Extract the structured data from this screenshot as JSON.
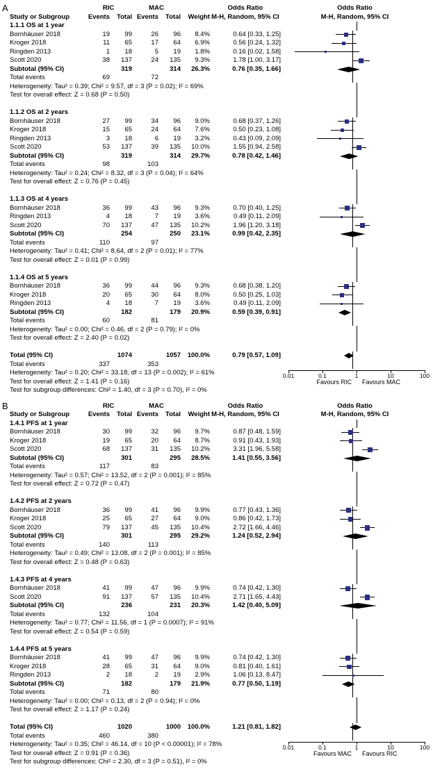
{
  "colors": {
    "marker": "#2c2f84",
    "ci_line": "#000000",
    "diamond": "#000000",
    "axis": "#000000"
  },
  "chart_data": [
    {
      "type": "forest",
      "panel_label": "A",
      "outcome": "OS",
      "scale": {
        "min": 0.01,
        "max": 100,
        "log": true
      },
      "header": {
        "group1": "RIC",
        "group2": "MAC",
        "study": "Study or Subgroup",
        "events": "Events",
        "total": "Total",
        "weight": "Weight",
        "or_col_title": "Odds Ratio",
        "or_plot_title": "Odds Ratio",
        "method": "M-H, Random, 95% CI"
      },
      "subgroups": [
        {
          "title": "1.1.1 OS at 1 year",
          "studies": [
            {
              "name": "Bornhäuser 2018",
              "e1": 19,
              "t1": 99,
              "e2": 26,
              "t2": 96,
              "weight": "8.4%",
              "w": 8.4,
              "or": 0.64,
              "lo": 0.33,
              "hi": 1.25,
              "ci": "0.64 [0.33, 1.25]"
            },
            {
              "name": "Kroger 2018",
              "e1": 11,
              "t1": 65,
              "e2": 17,
              "t2": 64,
              "weight": "6.9%",
              "w": 6.9,
              "or": 0.56,
              "lo": 0.24,
              "hi": 1.32,
              "ci": "0.56 [0.24, 1.32]"
            },
            {
              "name": "Ringden 2013",
              "e1": 1,
              "t1": 18,
              "e2": 5,
              "t2": 19,
              "weight": "1.8%",
              "w": 1.8,
              "or": 0.16,
              "lo": 0.02,
              "hi": 1.58,
              "ci": "0.16 [0.02, 1.58]"
            },
            {
              "name": "Scott 2020",
              "e1": 38,
              "t1": 137,
              "e2": 24,
              "t2": 135,
              "weight": "9.3%",
              "w": 9.3,
              "or": 1.78,
              "lo": 1.0,
              "hi": 3.17,
              "ci": "1.78 [1.00, 3.17]"
            }
          ],
          "subtotal": {
            "label": "Subtotal (95% CI)",
            "t1": 319,
            "t2": 314,
            "weight": "26.3%",
            "or": 0.76,
            "lo": 0.35,
            "hi": 1.66,
            "ci": "0.76 [0.35, 1.66]"
          },
          "total_events": {
            "label": "Total events",
            "e1": 69,
            "e2": 72
          },
          "heterogeneity": "Heterogeneity: Tau² = 0.39; Chi² = 9.57, df = 3 (P = 0.02); I² = 69%",
          "test": "Test for overall effect: Z = 0.68 (P = 0.50)"
        },
        {
          "title": "1.1.2 OS at 2 years",
          "studies": [
            {
              "name": "Bornhäuser 2018",
              "e1": 27,
              "t1": 99,
              "e2": 34,
              "t2": 96,
              "weight": "9.0%",
              "w": 9.0,
              "or": 0.68,
              "lo": 0.37,
              "hi": 1.26,
              "ci": "0.68 [0.37, 1.26]"
            },
            {
              "name": "Kroger 2018",
              "e1": 15,
              "t1": 65,
              "e2": 24,
              "t2": 64,
              "weight": "7.6%",
              "w": 7.6,
              "or": 0.5,
              "lo": 0.23,
              "hi": 1.08,
              "ci": "0.50 [0.23, 1.08]"
            },
            {
              "name": "Ringden 2013",
              "e1": 3,
              "t1": 18,
              "e2": 6,
              "t2": 19,
              "weight": "3.2%",
              "w": 3.2,
              "or": 0.43,
              "lo": 0.09,
              "hi": 2.09,
              "ci": "0.43 [0.09, 2.09]"
            },
            {
              "name": "Scott 2020",
              "e1": 53,
              "t1": 137,
              "e2": 39,
              "t2": 135,
              "weight": "10.0%",
              "w": 10.0,
              "or": 1.55,
              "lo": 0.94,
              "hi": 2.58,
              "ci": "1.55 [0.94, 2.58]"
            }
          ],
          "subtotal": {
            "label": "Subtotal (95% CI)",
            "t1": 319,
            "t2": 314,
            "weight": "29.7%",
            "or": 0.78,
            "lo": 0.42,
            "hi": 1.46,
            "ci": "0.78 [0.42, 1.46]"
          },
          "total_events": {
            "label": "Total events",
            "e1": 98,
            "e2": 103
          },
          "heterogeneity": "Heterogeneity: Tau² = 0.24; Chi² = 8.32, df = 3 (P = 0.04); I² = 64%",
          "test": "Test for overall effect: Z = 0.76 (P = 0.45)"
        },
        {
          "title": "1.1.3 OS at 4 years",
          "studies": [
            {
              "name": "Bornhäuser 2018",
              "e1": 36,
              "t1": 99,
              "e2": 43,
              "t2": 96,
              "weight": "9.3%",
              "w": 9.3,
              "or": 0.7,
              "lo": 0.4,
              "hi": 1.25,
              "ci": "0.70 [0.40, 1.25]"
            },
            {
              "name": "Ringden 2013",
              "e1": 4,
              "t1": 18,
              "e2": 7,
              "t2": 19,
              "weight": "3.6%",
              "w": 3.6,
              "or": 0.49,
              "lo": 0.11,
              "hi": 2.09,
              "ci": "0.49 [0.11, 2.09]"
            },
            {
              "name": "Scott 2020",
              "e1": 70,
              "t1": 137,
              "e2": 47,
              "t2": 135,
              "weight": "10.2%",
              "w": 10.2,
              "or": 1.96,
              "lo": 1.2,
              "hi": 3.18,
              "ci": "1.96 [1.20, 3.18]"
            }
          ],
          "subtotal": {
            "label": "Subtotal (95% CI)",
            "t1": 254,
            "t2": 250,
            "weight": "23.1%",
            "or": 0.99,
            "lo": 0.42,
            "hi": 2.35,
            "ci": "0.99 [0.42, 2.35]"
          },
          "total_events": {
            "label": "Total events",
            "e1": 110,
            "e2": 97
          },
          "heterogeneity": "Heterogeneity: Tau² = 0.41; Chi² = 8.64, df = 2 (P = 0.01); I² = 77%",
          "test": "Test for overall effect: Z = 0.01 (P = 0.99)"
        },
        {
          "title": "1.1.4 OS at 5 years",
          "studies": [
            {
              "name": "Bornhäuser 2018",
              "e1": 36,
              "t1": 99,
              "e2": 44,
              "t2": 96,
              "weight": "9.3%",
              "w": 9.3,
              "or": 0.68,
              "lo": 0.38,
              "hi": 1.2,
              "ci": "0.68 [0.38, 1.20]"
            },
            {
              "name": "Kroger 2018",
              "e1": 20,
              "t1": 65,
              "e2": 30,
              "t2": 64,
              "weight": "8.0%",
              "w": 8.0,
              "or": 0.5,
              "lo": 0.25,
              "hi": 1.03,
              "ci": "0.50 [0.25, 1.03]"
            },
            {
              "name": "Ringden 2013",
              "e1": 4,
              "t1": 18,
              "e2": 7,
              "t2": 19,
              "weight": "3.6%",
              "w": 3.6,
              "or": 0.49,
              "lo": 0.11,
              "hi": 2.09,
              "ci": "0.49 [0.11, 2.09]"
            }
          ],
          "subtotal": {
            "label": "Subtotal (95% CI)",
            "t1": 182,
            "t2": 179,
            "weight": "20.9%",
            "or": 0.59,
            "lo": 0.39,
            "hi": 0.91,
            "ci": "0.59 [0.39, 0.91]"
          },
          "total_events": {
            "label": "Total events",
            "e1": 60,
            "e2": 81
          },
          "heterogeneity": "Heterogeneity: Tau² = 0.00; Chi² = 0.46, df = 2 (P = 0.79); I² = 0%",
          "test": "Test for overall effect: Z = 2.40 (P = 0.02)"
        }
      ],
      "total": {
        "label": "Total (95% CI)",
        "t1": 1074,
        "t2": 1057,
        "weight": "100.0%",
        "or": 0.79,
        "lo": 0.57,
        "hi": 1.09,
        "ci": "0.79 [0.57, 1.09]",
        "total_events": {
          "label": "Total events",
          "e1": 337,
          "e2": 353
        },
        "heterogeneity": "Heterogeneity: Tau² = 0.20; Chi² = 33.18, df = 13 (P = 0.002); I² = 61%",
        "test": "Test for overall effect: Z = 1.41 (P = 0.16)",
        "subgroup_diff": "Test for subgroup differences: Chi² = 1.40, df = 3 (P = 0.70), I² = 0%"
      },
      "axis": {
        "ticks": [
          "0.01",
          "0.1",
          "1",
          "10",
          "100"
        ],
        "favours_left": "Favours RIC",
        "favours_right": "Favours MAC"
      }
    },
    {
      "type": "forest",
      "panel_label": "B",
      "outcome": "PFS",
      "scale": {
        "min": 0.01,
        "max": 100,
        "log": true
      },
      "header": {
        "group1": "RIC",
        "group2": "MAC",
        "study": "Study or Subgroup",
        "events": "Events",
        "total": "Total",
        "weight": "Weight",
        "or_col_title": "Odds Ratio",
        "or_plot_title": "Odds Ratio",
        "method": "M-H, Random, 95% CI"
      },
      "subgroups": [
        {
          "title": "1.4.1 PFS at 1 year",
          "studies": [
            {
              "name": "Bornhäuser 2018",
              "e1": 30,
              "t1": 99,
              "e2": 32,
              "t2": 96,
              "weight": "9.7%",
              "w": 9.7,
              "or": 0.87,
              "lo": 0.48,
              "hi": 1.59,
              "ci": "0.87 [0.48, 1.59]"
            },
            {
              "name": "Kroger 2018",
              "e1": 19,
              "t1": 65,
              "e2": 20,
              "t2": 64,
              "weight": "8.7%",
              "w": 8.7,
              "or": 0.91,
              "lo": 0.43,
              "hi": 1.93,
              "ci": "0.91 [0.43, 1.93]"
            },
            {
              "name": "Scott 2020",
              "e1": 68,
              "t1": 137,
              "e2": 31,
              "t2": 135,
              "weight": "10.2%",
              "w": 10.2,
              "or": 3.31,
              "lo": 1.96,
              "hi": 5.58,
              "ci": "3.31 [1.96, 5.58]"
            }
          ],
          "subtotal": {
            "label": "Subtotal (95% CI)",
            "t1": 301,
            "t2": 295,
            "weight": "28.5%",
            "or": 1.41,
            "lo": 0.55,
            "hi": 3.56,
            "ci": "1.41 [0.55, 3.56]"
          },
          "total_events": {
            "label": "Total events",
            "e1": 117,
            "e2": 83
          },
          "heterogeneity": "Heterogeneity: Tau² = 0.57; Chi² = 13.52, df = 2 (P = 0.001); I² = 85%",
          "test": "Test for overall effect: Z = 0.72 (P = 0.47)"
        },
        {
          "title": "1.4.2 PFS at 2 years",
          "studies": [
            {
              "name": "Bornhäuser 2018",
              "e1": 36,
              "t1": 99,
              "e2": 41,
              "t2": 96,
              "weight": "9.9%",
              "w": 9.9,
              "or": 0.77,
              "lo": 0.43,
              "hi": 1.36,
              "ci": "0.77 [0.43, 1.36]"
            },
            {
              "name": "Kroger 2018",
              "e1": 25,
              "t1": 65,
              "e2": 27,
              "t2": 64,
              "weight": "9.0%",
              "w": 9.0,
              "or": 0.86,
              "lo": 0.42,
              "hi": 1.73,
              "ci": "0.86 [0.42, 1.73]"
            },
            {
              "name": "Scott 2020",
              "e1": 79,
              "t1": 137,
              "e2": 45,
              "t2": 135,
              "weight": "10.4%",
              "w": 10.4,
              "or": 2.72,
              "lo": 1.66,
              "hi": 4.46,
              "ci": "2.72 [1.66, 4.46]"
            }
          ],
          "subtotal": {
            "label": "Subtotal (95% CI)",
            "t1": 301,
            "t2": 295,
            "weight": "29.2%",
            "or": 1.24,
            "lo": 0.52,
            "hi": 2.94,
            "ci": "1.24 [0.52, 2.94]"
          },
          "total_events": {
            "label": "Total events",
            "e1": 140,
            "e2": 113
          },
          "heterogeneity": "Heterogeneity: Tau² = 0.49; Chi² = 13.08, df = 2 (P = 0.001); I² = 85%",
          "test": "Test for overall effect: Z = 0.48 (P = 0.63)"
        },
        {
          "title": "1.4.3 PFS at 4 years",
          "studies": [
            {
              "name": "Bornhäuser 2018",
              "e1": 41,
              "t1": 99,
              "e2": 47,
              "t2": 96,
              "weight": "9.9%",
              "w": 9.9,
              "or": 0.74,
              "lo": 0.42,
              "hi": 1.3,
              "ci": "0.74 [0.42, 1.30]"
            },
            {
              "name": "Scott 2020",
              "e1": 91,
              "t1": 137,
              "e2": 57,
              "t2": 135,
              "weight": "10.4%",
              "w": 10.4,
              "or": 2.71,
              "lo": 1.65,
              "hi": 4.43,
              "ci": "2.71 [1.65, 4.43]"
            }
          ],
          "subtotal": {
            "label": "Subtotal (95% CI)",
            "t1": 236,
            "t2": 231,
            "weight": "20.3%",
            "or": 1.42,
            "lo": 0.4,
            "hi": 5.09,
            "ci": "1.42 [0.40, 5.09]"
          },
          "total_events": {
            "label": "Total events",
            "e1": 132,
            "e2": 104
          },
          "heterogeneity": "Heterogeneity: Tau² = 0.77; Chi² = 11.56, df = 1 (P = 0.0007); I² = 91%",
          "test": "Test for overall effect: Z = 0.54 (P = 0.59)"
        },
        {
          "title": "1.4.4 PFS at 5 years",
          "studies": [
            {
              "name": "Bornhäuser 2018",
              "e1": 41,
              "t1": 99,
              "e2": 47,
              "t2": 96,
              "weight": "9.9%",
              "w": 9.9,
              "or": 0.74,
              "lo": 0.42,
              "hi": 1.3,
              "ci": "0.74 [0.42, 1.30]"
            },
            {
              "name": "Kroger 2018",
              "e1": 28,
              "t1": 65,
              "e2": 31,
              "t2": 64,
              "weight": "9.0%",
              "w": 9.0,
              "or": 0.81,
              "lo": 0.4,
              "hi": 1.61,
              "ci": "0.81 [0.40, 1.61]"
            },
            {
              "name": "Ringden 2013",
              "e1": 2,
              "t1": 18,
              "e2": 2,
              "t2": 19,
              "weight": "2.9%",
              "w": 2.9,
              "or": 1.06,
              "lo": 0.13,
              "hi": 8.47,
              "ci": "1.06 [0.13, 8.47]"
            }
          ],
          "subtotal": {
            "label": "Subtotal (95% CI)",
            "t1": 182,
            "t2": 179,
            "weight": "21.9%",
            "or": 0.77,
            "lo": 0.5,
            "hi": 1.19,
            "ci": "0.77 [0.50, 1.19]"
          },
          "total_events": {
            "label": "Total events",
            "e1": 71,
            "e2": 80
          },
          "heterogeneity": "Heterogeneity: Tau² = 0.00; Chi² = 0.13, df = 2 (P = 0.94); I² = 0%",
          "test": "Test for overall effect: Z = 1.17 (P = 0.24)"
        }
      ],
      "total": {
        "label": "Total (95% CI)",
        "t1": 1020,
        "t2": 1000,
        "weight": "100.0%",
        "or": 1.21,
        "lo": 0.81,
        "hi": 1.82,
        "ci": "1.21 [0.81, 1.82]",
        "total_events": {
          "label": "Total events",
          "e1": 460,
          "e2": 380
        },
        "heterogeneity": "Heterogeneity: Tau² = 0.35; Chi² = 46.14, df = 10 (P < 0.00001); I² = 78%",
        "test": "Test for overall effect: Z = 0.91 (P = 0.36)",
        "subgroup_diff": "Test for subgroup differences: Chi² = 2.30, df = 3 (P = 0.51), I² = 0%"
      },
      "axis": {
        "ticks": [
          "0.01",
          "0.1",
          "1",
          "10",
          "100"
        ],
        "favours_left": "Favours MAC",
        "favours_right": "Favours RIC"
      }
    }
  ]
}
